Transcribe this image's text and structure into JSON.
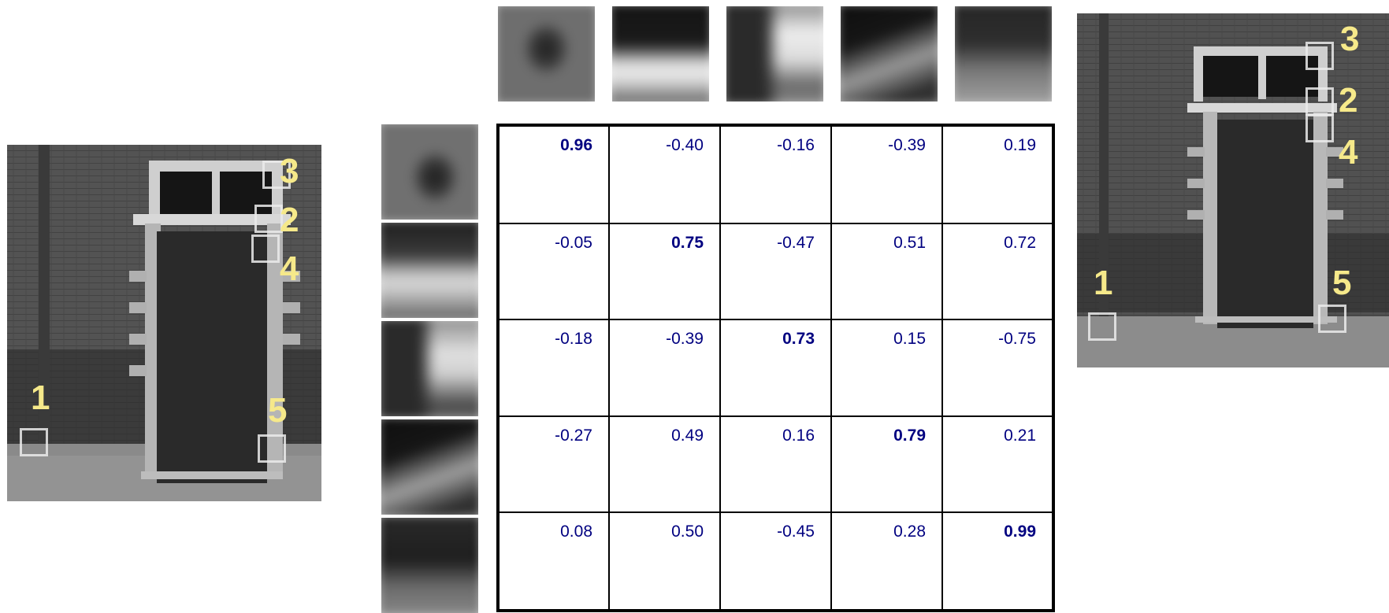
{
  "markers": {
    "labels": [
      "1",
      "2",
      "3",
      "4",
      "5"
    ],
    "color": "#f6e98a"
  },
  "matrix": {
    "rows": [
      [
        "0.96",
        "-0.40",
        "-0.16",
        "-0.39",
        "0.19"
      ],
      [
        "-0.05",
        "0.75",
        "-0.47",
        "0.51",
        "0.72"
      ],
      [
        "-0.18",
        "-0.39",
        "0.73",
        "0.15",
        "-0.75"
      ],
      [
        "-0.27",
        "0.49",
        "0.16",
        "0.79",
        "0.21"
      ],
      [
        "0.08",
        "0.50",
        "-0.45",
        "0.28",
        "0.99"
      ]
    ],
    "bold_diagonal": true,
    "text_color": "#000080"
  }
}
